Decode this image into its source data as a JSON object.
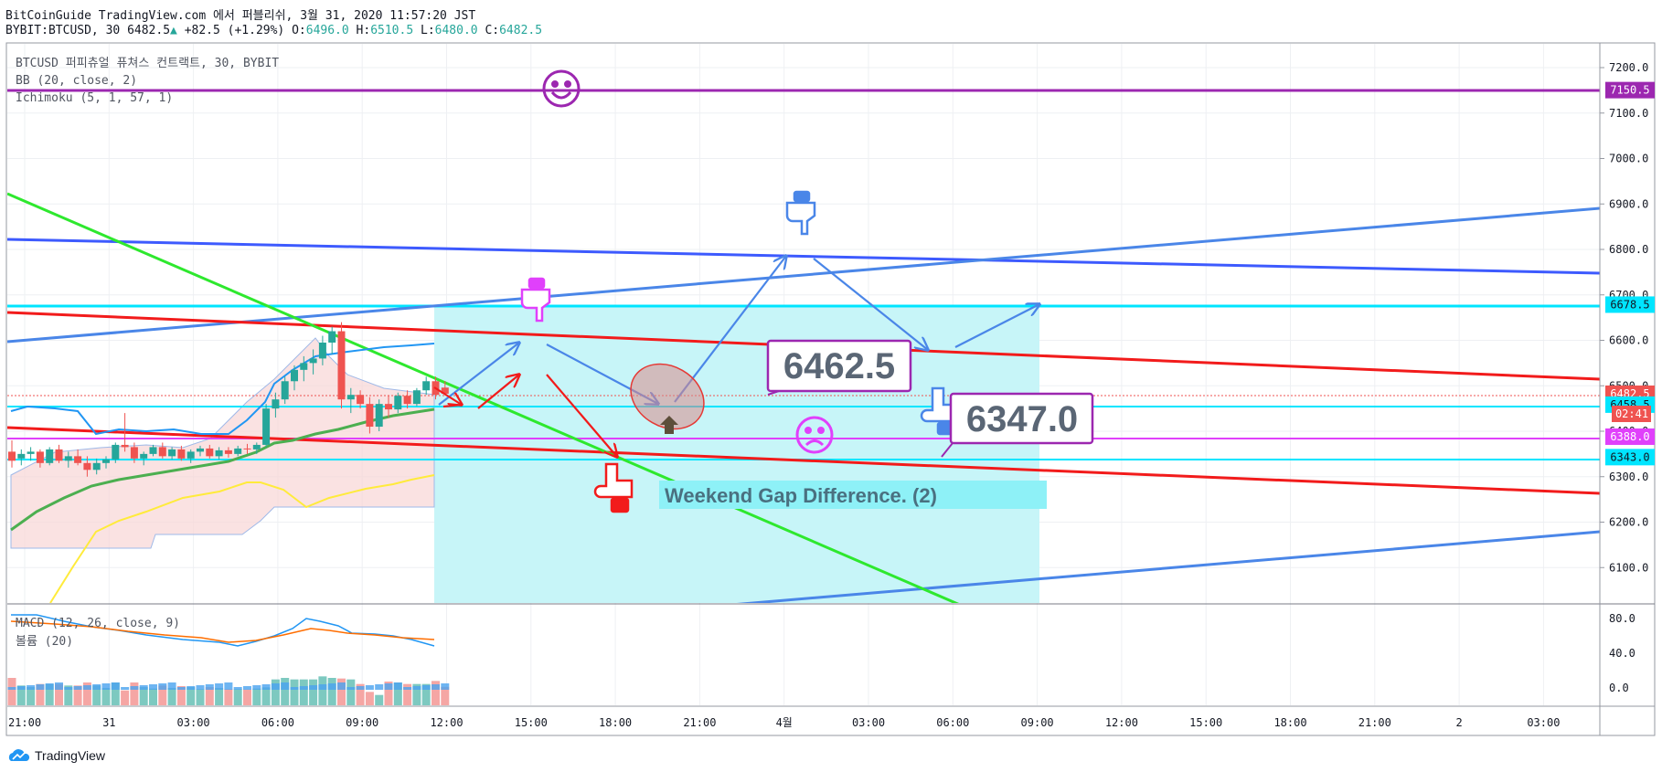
{
  "header": {
    "line1": "BitCoinGuide TradingView.com 에서 퍼블리쉬, 3월 31, 2020 11:57:20 JST",
    "symbol": "BYBIT:BTCUSD, 30",
    "last": "6482.5",
    "change": "+82.5 (+1.29%)",
    "o_label": "O:",
    "o": "6496.0",
    "h_label": "H:",
    "h": "6510.5",
    "l_label": "L:",
    "l": "6480.0",
    "c_label": "C:",
    "c": "6482.5"
  },
  "legend": {
    "title": "BTCUSD 퍼피츄얼 퓨쳐스 컨트랙트, 30, BYBIT",
    "bb": "BB (20, close, 2)",
    "ichimoku": "Ichimoku (5, 1, 57, 1)",
    "macd": "MACD (12, 26, close, 9)",
    "volume": "볼륨 (20)"
  },
  "footer": {
    "brand": "TradingView"
  },
  "colors": {
    "up": "#26a69a",
    "down": "#ef5350",
    "cyan": "#00e5ff",
    "magenta": "#e040fb",
    "purple": "#9c27b0",
    "blue": "#3d5afe",
    "lightblue": "#4a86e8",
    "red": "#f21b1b",
    "green": "#2ee82e",
    "bbBlue": "#2196f3",
    "bbGreen": "#4caf50",
    "bbYellow": "#ffeb3b"
  },
  "chart_data": {
    "type": "candlestick",
    "y_axis": {
      "min": 6050,
      "max": 7250,
      "ticks": [
        "7200.0",
        "7100.0",
        "7000.0",
        "6900.0",
        "6800.0",
        "6700.0",
        "6600.0",
        "6500.0",
        "6400.0",
        "6300.0",
        "6200.0",
        "6100.0"
      ]
    },
    "x_axis": {
      "ticks": [
        "21:00",
        "31",
        "03:00",
        "06:00",
        "09:00",
        "12:00",
        "15:00",
        "18:00",
        "21:00",
        "4월",
        "03:00",
        "06:00",
        "09:00",
        "12:00",
        "15:00",
        "18:00",
        "21:00",
        "2",
        "03:00"
      ]
    },
    "candles": [
      [
        6355,
        6380,
        6320,
        6335
      ],
      [
        6340,
        6360,
        6325,
        6350
      ],
      [
        6350,
        6365,
        6335,
        6355
      ],
      [
        6355,
        6360,
        6320,
        6330
      ],
      [
        6330,
        6365,
        6325,
        6360
      ],
      [
        6360,
        6370,
        6330,
        6335
      ],
      [
        6335,
        6355,
        6320,
        6345
      ],
      [
        6345,
        6360,
        6325,
        6330
      ],
      [
        6330,
        6345,
        6300,
        6315
      ],
      [
        6315,
        6340,
        6305,
        6330
      ],
      [
        6330,
        6345,
        6318,
        6338
      ],
      [
        6338,
        6375,
        6330,
        6370
      ],
      [
        6370,
        6440,
        6355,
        6365
      ],
      [
        6365,
        6375,
        6330,
        6340
      ],
      [
        6340,
        6355,
        6325,
        6350
      ],
      [
        6350,
        6370,
        6345,
        6365
      ],
      [
        6365,
        6375,
        6340,
        6345
      ],
      [
        6345,
        6365,
        6338,
        6360
      ],
      [
        6360,
        6368,
        6335,
        6340
      ],
      [
        6340,
        6360,
        6330,
        6355
      ],
      [
        6355,
        6368,
        6345,
        6362
      ],
      [
        6362,
        6370,
        6340,
        6345
      ],
      [
        6345,
        6365,
        6338,
        6358
      ],
      [
        6358,
        6365,
        6342,
        6350
      ],
      [
        6350,
        6368,
        6345,
        6362
      ],
      [
        6362,
        6372,
        6350,
        6360
      ],
      [
        6360,
        6375,
        6350,
        6370
      ],
      [
        6370,
        6460,
        6365,
        6450
      ],
      [
        6450,
        6485,
        6430,
        6470
      ],
      [
        6470,
        6520,
        6460,
        6510
      ],
      [
        6510,
        6545,
        6490,
        6535
      ],
      [
        6535,
        6565,
        6510,
        6550
      ],
      [
        6550,
        6580,
        6525,
        6560
      ],
      [
        6560,
        6610,
        6545,
        6595
      ],
      [
        6595,
        6630,
        6570,
        6620
      ],
      [
        6620,
        6640,
        6450,
        6470
      ],
      [
        6470,
        6495,
        6440,
        6480
      ],
      [
        6480,
        6490,
        6450,
        6460
      ],
      [
        6460,
        6475,
        6395,
        6410
      ],
      [
        6410,
        6470,
        6400,
        6460
      ],
      [
        6460,
        6478,
        6430,
        6448
      ],
      [
        6448,
        6485,
        6440,
        6478
      ],
      [
        6478,
        6490,
        6450,
        6460
      ],
      [
        6460,
        6495,
        6455,
        6490
      ],
      [
        6490,
        6520,
        6480,
        6510
      ],
      [
        6510,
        6520,
        6470,
        6480
      ],
      [
        6496,
        6510.5,
        6480,
        6482.5
      ]
    ],
    "horizontal_levels": [
      {
        "price": 7150.5,
        "label": "7150.5",
        "color": "#9c27b0"
      },
      {
        "price": 6678.5,
        "label": "6678.5",
        "color": "#00e5ff"
      },
      {
        "price": 6482.5,
        "label": "6482.5",
        "color": "#ef5350"
      },
      {
        "price": 6458.5,
        "label": "6458.5",
        "color": "#00e5ff"
      },
      {
        "price": 6388.0,
        "label": "6388.0",
        "color": "#e040fb"
      },
      {
        "price": 6343.0,
        "label": "6343.0",
        "color": "#00e5ff"
      }
    ],
    "countdown": "02:41",
    "annotations": {
      "callout1": "6462.5",
      "callout2": "6347.0",
      "gap_text": "Weekend Gap Difference. (2)"
    },
    "macd_axis": [
      "80.0",
      "40.0",
      "0.0"
    ]
  }
}
